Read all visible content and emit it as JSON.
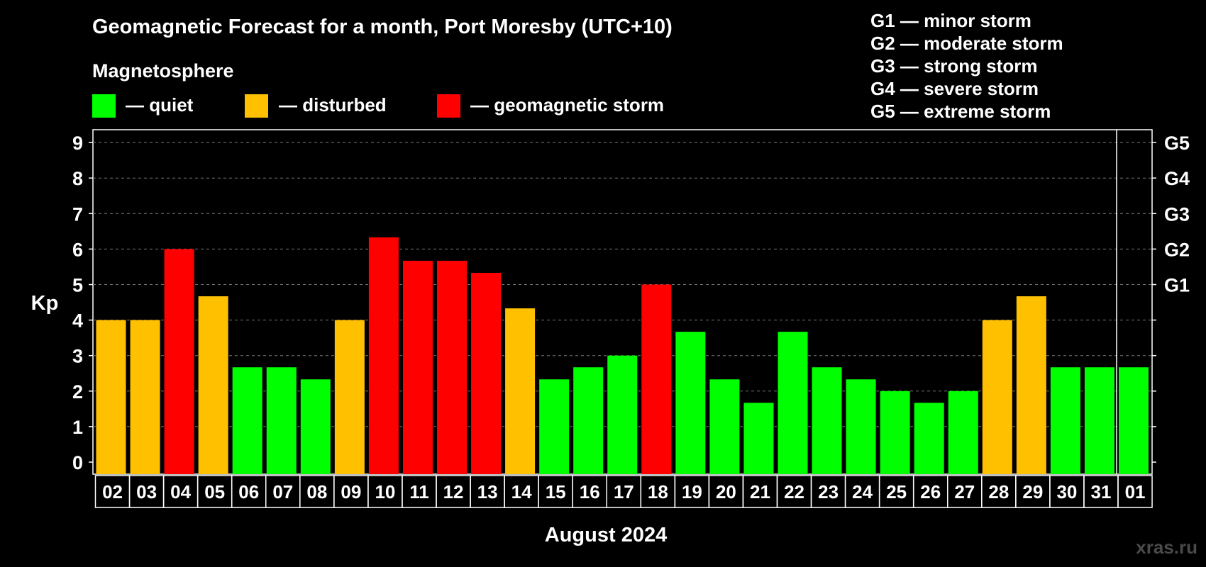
{
  "title": "Geomagnetic Forecast for a month, Port Moresby (UTC+10)",
  "legend": {
    "heading": "Magnetosphere",
    "items": [
      {
        "label": "— quiet",
        "color": "#00ff00"
      },
      {
        "label": "— disturbed",
        "color": "#ffc000"
      },
      {
        "label": "— geomagnetic storm",
        "color": "#ff0000"
      }
    ]
  },
  "g_scale": [
    "G1 — minor storm",
    "G2 — moderate storm",
    "G3 — strong storm",
    "G4 — severe storm",
    "G5 — extreme storm"
  ],
  "watermark": "xras.ru",
  "chart_data": {
    "type": "bar",
    "title": "Geomagnetic Forecast for a month, Port Moresby (UTC+10)",
    "xlabel": "August 2024",
    "ylabel": "Kp",
    "ylim": [
      0,
      9
    ],
    "yticks": [
      "0",
      "1",
      "2",
      "3",
      "4",
      "5",
      "6",
      "7",
      "8",
      "9"
    ],
    "right_axis_labels": [
      {
        "kp": 5,
        "label": "G1"
      },
      {
        "kp": 6,
        "label": "G2"
      },
      {
        "kp": 7,
        "label": "G3"
      },
      {
        "kp": 8,
        "label": "G4"
      },
      {
        "kp": 9,
        "label": "G5"
      }
    ],
    "grid": "dashed horizontal",
    "categories": [
      "02",
      "03",
      "04",
      "05",
      "06",
      "07",
      "08",
      "09",
      "10",
      "11",
      "12",
      "13",
      "14",
      "15",
      "16",
      "17",
      "18",
      "19",
      "20",
      "21",
      "22",
      "23",
      "24",
      "25",
      "26",
      "27",
      "28",
      "29",
      "30",
      "31",
      "01"
    ],
    "values": [
      4.0,
      4.0,
      6.0,
      4.67,
      2.67,
      2.67,
      2.33,
      4.0,
      6.33,
      5.67,
      5.67,
      5.33,
      4.33,
      2.33,
      2.67,
      3.0,
      5.0,
      3.67,
      2.33,
      1.67,
      3.67,
      2.67,
      2.33,
      2.0,
      1.67,
      2.0,
      4.0,
      4.67,
      2.67,
      2.67,
      2.67
    ],
    "levels": [
      "disturbed",
      "disturbed",
      "storm",
      "disturbed",
      "quiet",
      "quiet",
      "quiet",
      "disturbed",
      "storm",
      "storm",
      "storm",
      "storm",
      "disturbed",
      "quiet",
      "quiet",
      "quiet",
      "storm",
      "quiet",
      "quiet",
      "quiet",
      "quiet",
      "quiet",
      "quiet",
      "quiet",
      "quiet",
      "quiet",
      "disturbed",
      "disturbed",
      "quiet",
      "quiet",
      "quiet"
    ],
    "level_colors": {
      "quiet": "#00ff00",
      "disturbed": "#ffc000",
      "storm": "#ff0000"
    }
  }
}
